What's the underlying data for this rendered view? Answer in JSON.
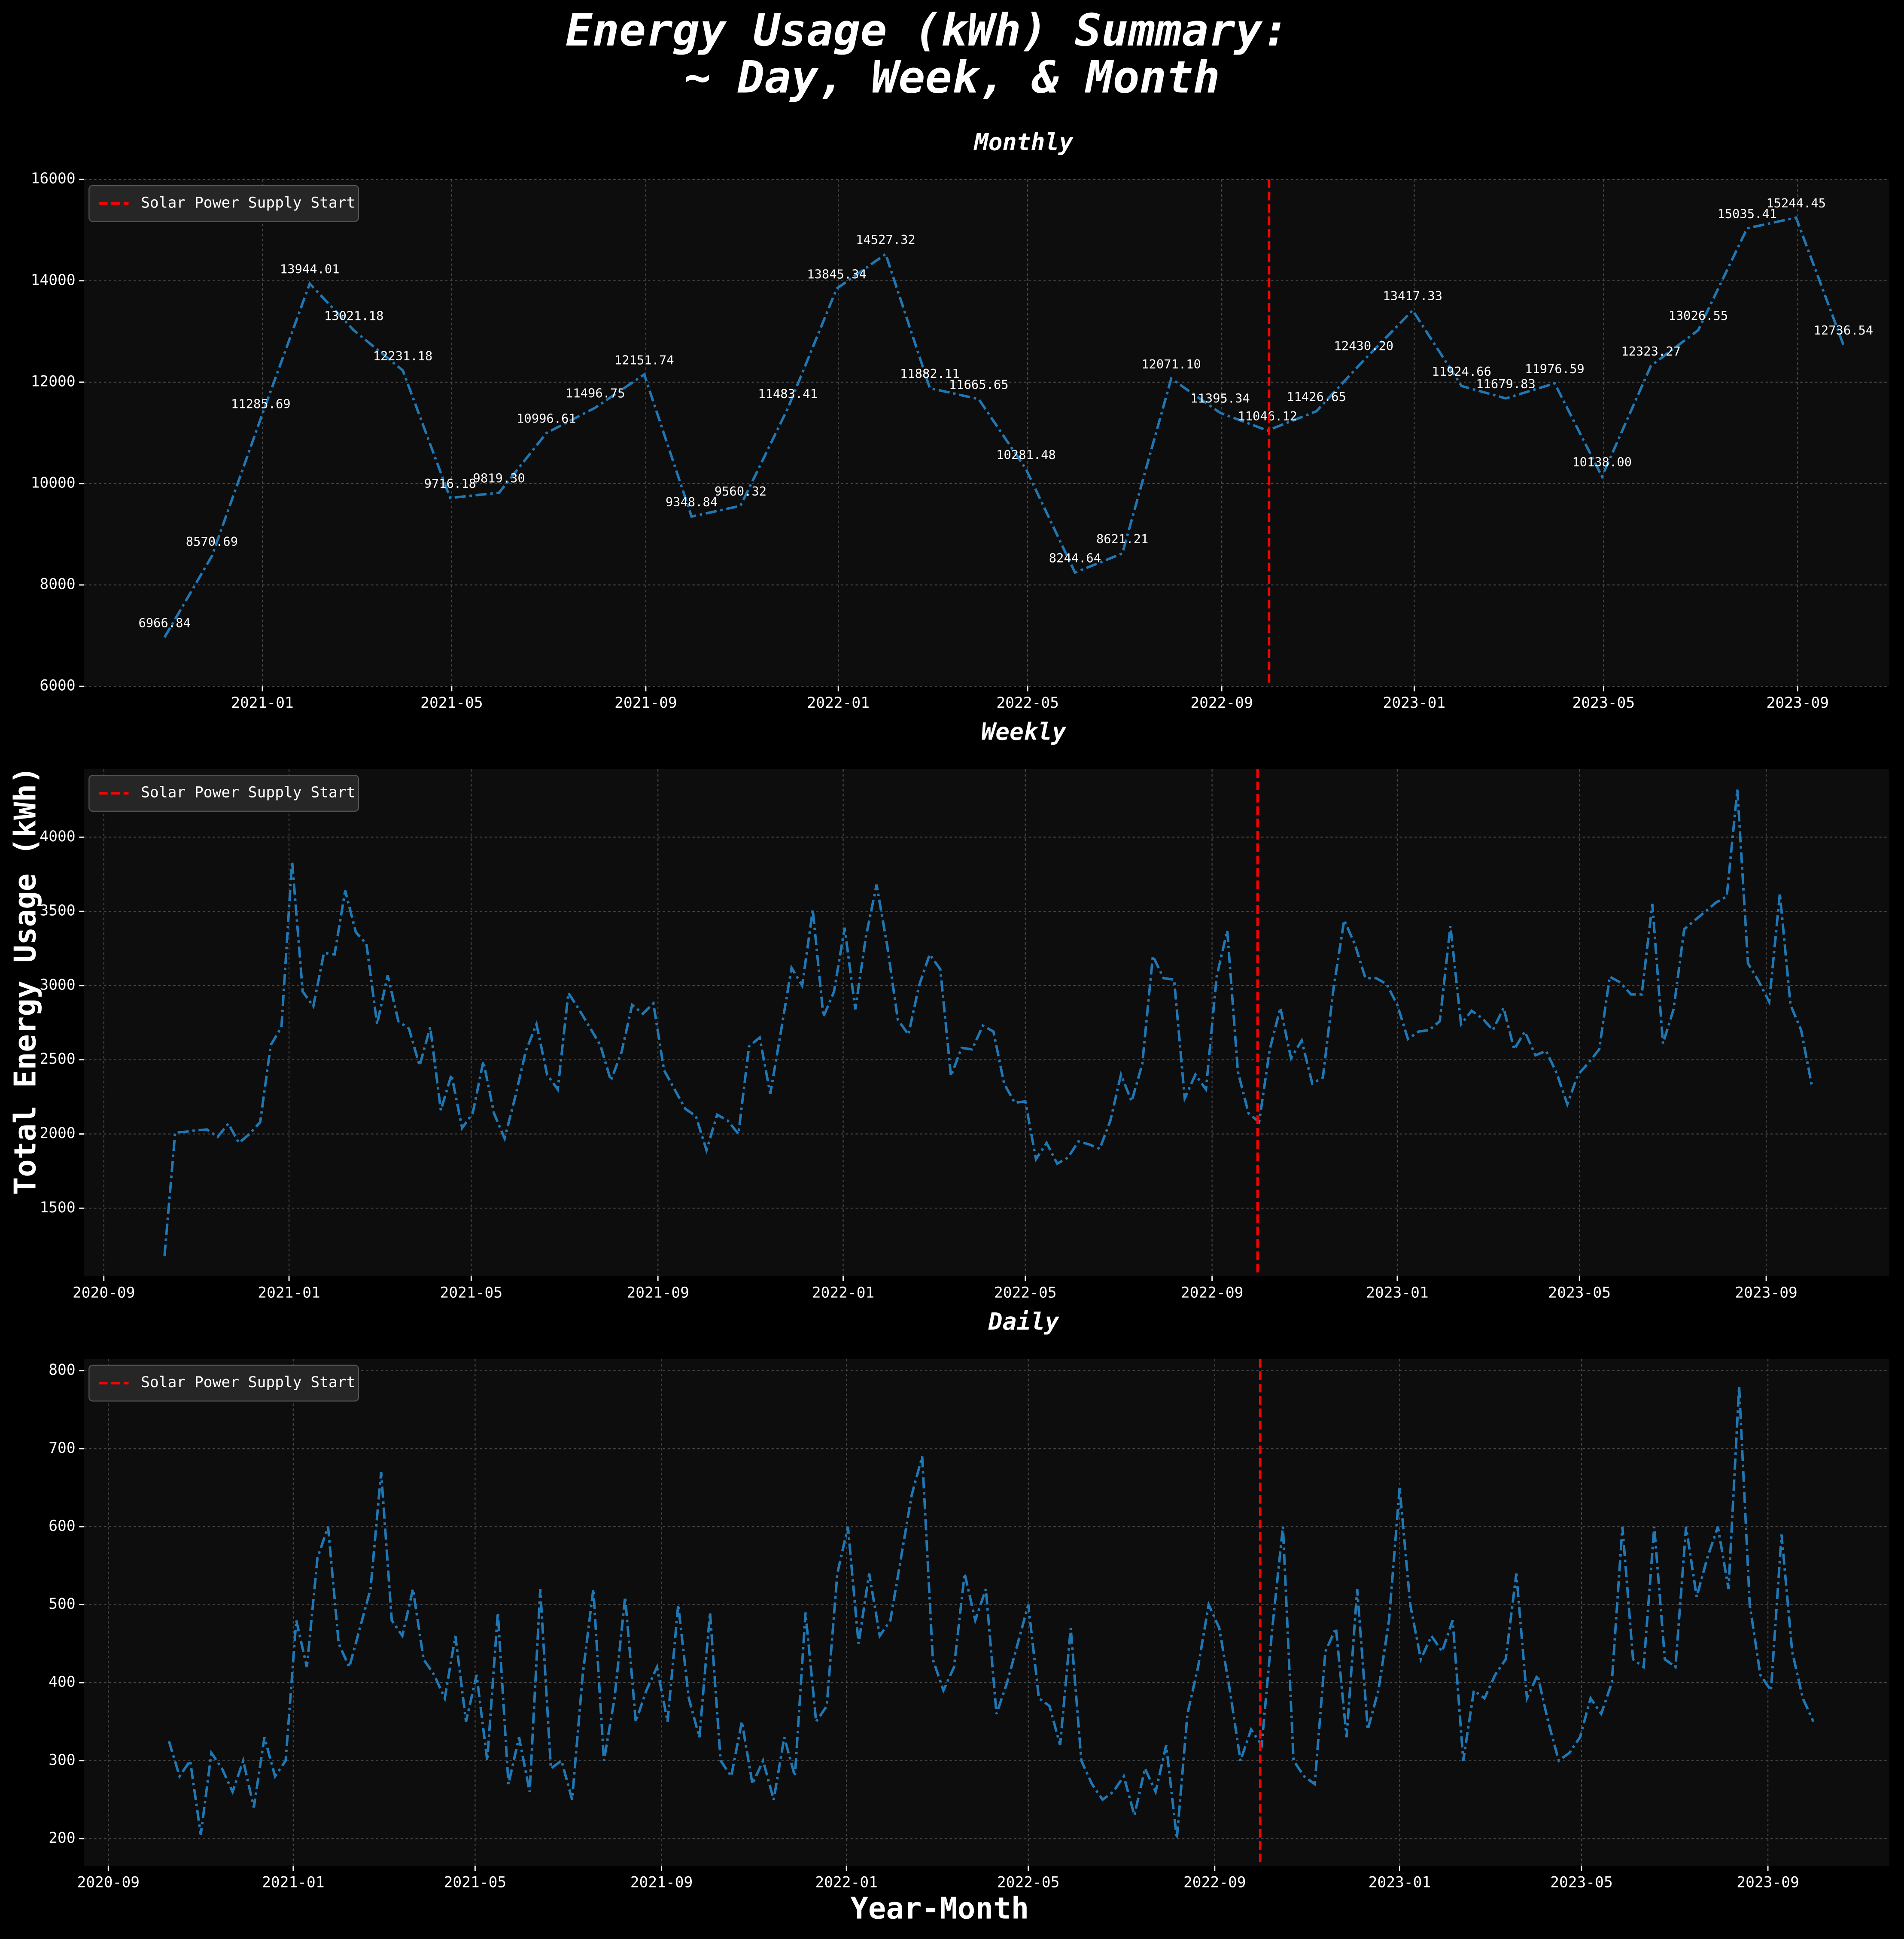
{
  "figure": {
    "title": [
      "Energy Usage (kWh) Summary:",
      "~ Day, Week, & Month"
    ],
    "ylabel": "Total Energy Usage (kWh)",
    "xlabel": "Year-Month"
  },
  "chart_data": [
    {
      "type": "line",
      "title": "Monthly",
      "color": "#1f77b4",
      "grid": true,
      "legend": "upper left",
      "vline": {
        "x": "2022-10-01",
        "label": "Solar Power Supply Start",
        "color": "red"
      },
      "xlim": [
        "2020-09-10",
        "2023-10-29"
      ],
      "xticks": [
        "2021-01",
        "2021-05",
        "2021-09",
        "2022-01",
        "2022-05",
        "2022-09",
        "2023-01",
        "2023-05",
        "2023-09"
      ],
      "ylim": [
        6000,
        16000
      ],
      "yticks": [
        6000,
        8000,
        10000,
        12000,
        14000,
        16000
      ],
      "x": [
        "2020-10-31",
        "2020-11-30",
        "2020-12-31",
        "2021-01-31",
        "2021-02-28",
        "2021-03-31",
        "2021-04-30",
        "2021-05-31",
        "2021-06-30",
        "2021-07-31",
        "2021-08-31",
        "2021-09-30",
        "2021-10-31",
        "2021-11-30",
        "2021-12-31",
        "2022-01-31",
        "2022-02-28",
        "2022-03-31",
        "2022-04-30",
        "2022-05-31",
        "2022-06-30",
        "2022-07-31",
        "2022-08-31",
        "2022-09-30",
        "2022-10-31",
        "2022-11-30",
        "2022-12-31",
        "2023-01-31",
        "2023-02-28",
        "2023-03-31",
        "2023-04-30",
        "2023-05-31",
        "2023-06-30",
        "2023-07-31",
        "2023-08-31",
        "2023-09-30"
      ],
      "values": [
        6966.84,
        8570.69,
        11285.69,
        13944.01,
        13021.18,
        12231.18,
        9716.18,
        9819.3,
        10996.61,
        11496.75,
        12151.74,
        9348.84,
        9560.32,
        11483.41,
        13845.34,
        14527.32,
        11882.11,
        11665.65,
        10281.48,
        8244.64,
        8621.21,
        12071.1,
        11395.34,
        11046.12,
        11426.65,
        12430.2,
        13417.33,
        11924.66,
        11679.83,
        11976.59,
        10138.0,
        12323.27,
        13026.55,
        15035.41,
        15244.45,
        12736.54
      ],
      "value_labels": [
        "6966.84",
        "8570.69",
        "11285.69",
        "13944.01",
        "13021.18",
        "12231.18",
        "9716.18",
        "9819.30",
        "10996.61",
        "11496.75",
        "12151.74",
        "9348.84",
        "9560.32",
        "11483.41",
        "13845.34",
        "14527.32",
        "11882.11",
        "11665.65",
        "10281.48",
        "8244.64",
        "8621.21",
        "12071.10",
        "11395.34",
        "11046.12",
        "11426.65",
        "12430.20",
        "13417.33",
        "11924.66",
        "11679.83",
        "11976.59",
        "10138.00",
        "12323.27",
        "13026.55",
        "15035.41",
        "15244.45",
        "12736.54"
      ]
    },
    {
      "type": "line",
      "title": "Weekly",
      "color": "#1f77b4",
      "grid": true,
      "legend": "upper left",
      "vline": {
        "x": "2022-10-01",
        "label": "Solar Power Supply Start",
        "color": "red"
      },
      "xlim": [
        "2020-08-19",
        "2023-11-21"
      ],
      "xticks": [
        "2020-09",
        "2021-01",
        "2021-05",
        "2021-09",
        "2022-01",
        "2022-05",
        "2022-09",
        "2023-01",
        "2023-05",
        "2023-09"
      ],
      "ylim": [
        1042,
        4458
      ],
      "yticks": [
        1500,
        2000,
        2500,
        3000,
        3500,
        4000
      ],
      "x": [
        "2020-10-11",
        "2020-10-18",
        "2020-10-25",
        "2020-11-01",
        "2020-11-08",
        "2020-11-15",
        "2020-11-22",
        "2020-11-29",
        "2020-12-06",
        "2020-12-13",
        "2020-12-20",
        "2020-12-27",
        "2021-01-03",
        "2021-01-10",
        "2021-01-17",
        "2021-01-24",
        "2021-01-31",
        "2021-02-07",
        "2021-02-14",
        "2021-02-21",
        "2021-02-28",
        "2021-03-07",
        "2021-03-14",
        "2021-03-21",
        "2021-03-28",
        "2021-04-04",
        "2021-04-11",
        "2021-04-18",
        "2021-04-25",
        "2021-05-02",
        "2021-05-09",
        "2021-05-16",
        "2021-05-23",
        "2021-05-30",
        "2021-06-06",
        "2021-06-13",
        "2021-06-20",
        "2021-06-27",
        "2021-07-04",
        "2021-07-11",
        "2021-07-18",
        "2021-07-25",
        "2021-08-01",
        "2021-08-08",
        "2021-08-15",
        "2021-08-22",
        "2021-08-29",
        "2021-09-05",
        "2021-09-12",
        "2021-09-19",
        "2021-09-26",
        "2021-10-03",
        "2021-10-10",
        "2021-10-17",
        "2021-10-24",
        "2021-10-31",
        "2021-11-07",
        "2021-11-14",
        "2021-11-21",
        "2021-11-28",
        "2021-12-05",
        "2021-12-12",
        "2021-12-19",
        "2021-12-26",
        "2022-01-02",
        "2022-01-09",
        "2022-01-16",
        "2022-01-23",
        "2022-01-30",
        "2022-02-06",
        "2022-02-13",
        "2022-02-20",
        "2022-02-27",
        "2022-03-06",
        "2022-03-13",
        "2022-03-20",
        "2022-03-27",
        "2022-04-03",
        "2022-04-10",
        "2022-04-17",
        "2022-04-24",
        "2022-05-01",
        "2022-05-08",
        "2022-05-15",
        "2022-05-22",
        "2022-05-29",
        "2022-06-05",
        "2022-06-12",
        "2022-06-19",
        "2022-06-26",
        "2022-07-03",
        "2022-07-10",
        "2022-07-17",
        "2022-07-24",
        "2022-07-31",
        "2022-08-07",
        "2022-08-14",
        "2022-08-21",
        "2022-08-28",
        "2022-09-04",
        "2022-09-11",
        "2022-09-18",
        "2022-09-25",
        "2022-10-02",
        "2022-10-09",
        "2022-10-16",
        "2022-10-23",
        "2022-10-30",
        "2022-11-06",
        "2022-11-13",
        "2022-11-20",
        "2022-11-27",
        "2022-12-04",
        "2022-12-11",
        "2022-12-18",
        "2022-12-25",
        "2023-01-01",
        "2023-01-08",
        "2023-01-15",
        "2023-01-22",
        "2023-01-29",
        "2023-02-05",
        "2023-02-12",
        "2023-02-19",
        "2023-02-26",
        "2023-03-05",
        "2023-03-12",
        "2023-03-19",
        "2023-03-26",
        "2023-04-02",
        "2023-04-09",
        "2023-04-16",
        "2023-04-23",
        "2023-04-30",
        "2023-05-07",
        "2023-05-14",
        "2023-05-21",
        "2023-05-28",
        "2023-06-04",
        "2023-06-11",
        "2023-06-18",
        "2023-06-25",
        "2023-07-02",
        "2023-07-09",
        "2023-07-16",
        "2023-07-23",
        "2023-07-30",
        "2023-08-06",
        "2023-08-13",
        "2023-08-20",
        "2023-08-27",
        "2023-09-03",
        "2023-09-10",
        "2023-09-17",
        "2023-09-24",
        "2023-10-01"
      ],
      "values": [
        1180,
        2010,
        2015,
        2025,
        2030,
        1980,
        2070,
        1940,
        2000,
        2080,
        2600,
        2720,
        3840,
        2960,
        2860,
        3220,
        3210,
        3640,
        3360,
        3280,
        2740,
        3070,
        2760,
        2710,
        2460,
        2720,
        2160,
        2400,
        2040,
        2140,
        2490,
        2140,
        1970,
        2250,
        2560,
        2740,
        2400,
        2300,
        2950,
        2840,
        2720,
        2600,
        2360,
        2550,
        2870,
        2810,
        2880,
        2430,
        2300,
        2170,
        2120,
        1890,
        2130,
        2090,
        2000,
        2590,
        2650,
        2270,
        2690,
        3120,
        3000,
        3510,
        2790,
        2960,
        3390,
        2840,
        3330,
        3680,
        3270,
        2770,
        2670,
        3000,
        3210,
        3110,
        2390,
        2580,
        2570,
        2730,
        2690,
        2340,
        2210,
        2220,
        1830,
        1940,
        1800,
        1840,
        1950,
        1930,
        1900,
        2090,
        2400,
        2220,
        2470,
        3200,
        3050,
        3040,
        2240,
        2400,
        2300,
        3060,
        3370,
        2420,
        2140,
        2080,
        2570,
        2850,
        2510,
        2630,
        2340,
        2380,
        2980,
        3440,
        3280,
        3050,
        3050,
        3010,
        2870,
        2640,
        2690,
        2700,
        2760,
        3400,
        2740,
        2830,
        2780,
        2700,
        2850,
        2570,
        2690,
        2530,
        2560,
        2410,
        2200,
        2400,
        2480,
        2570,
        3060,
        3020,
        2940,
        2940,
        3550,
        2610,
        2840,
        3380,
        3440,
        3500,
        3560,
        3600,
        4320,
        3150,
        3030,
        2890,
        3620,
        2870,
        2700,
        2330
      ]
    },
    {
      "type": "line",
      "title": "Daily",
      "color": "#1f77b4",
      "grid": true,
      "legend": "upper left",
      "vline": {
        "x": "2022-10-01",
        "label": "Solar Power Supply Start",
        "color": "red"
      },
      "xlim": [
        "2020-08-16",
        "2023-11-20"
      ],
      "xticks": [
        "2020-09",
        "2021-01",
        "2021-05",
        "2021-09",
        "2022-01",
        "2022-05",
        "2022-09",
        "2023-01",
        "2023-05",
        "2023-09"
      ],
      "ylim": [
        165,
        815
      ],
      "yticks": [
        200,
        300,
        400,
        500,
        600,
        700,
        800
      ],
      "x": [
        "2020-10-11",
        "2020-10-18",
        "2020-10-25",
        "2020-11-01",
        "2020-11-08",
        "2020-11-15",
        "2020-11-22",
        "2020-11-29",
        "2020-12-06",
        "2020-12-13",
        "2020-12-20",
        "2020-12-27",
        "2021-01-03",
        "2021-01-10",
        "2021-01-17",
        "2021-01-24",
        "2021-01-31",
        "2021-02-07",
        "2021-02-14",
        "2021-02-21",
        "2021-02-28",
        "2021-03-07",
        "2021-03-14",
        "2021-03-21",
        "2021-03-28",
        "2021-04-04",
        "2021-04-11",
        "2021-04-18",
        "2021-04-25",
        "2021-05-02",
        "2021-05-09",
        "2021-05-16",
        "2021-05-23",
        "2021-05-30",
        "2021-06-06",
        "2021-06-13",
        "2021-06-20",
        "2021-06-27",
        "2021-07-04",
        "2021-07-11",
        "2021-07-18",
        "2021-07-25",
        "2021-08-01",
        "2021-08-08",
        "2021-08-15",
        "2021-08-22",
        "2021-08-29",
        "2021-09-05",
        "2021-09-12",
        "2021-09-19",
        "2021-09-26",
        "2021-10-03",
        "2021-10-10",
        "2021-10-17",
        "2021-10-24",
        "2021-10-31",
        "2021-11-07",
        "2021-11-14",
        "2021-11-21",
        "2021-11-28",
        "2021-12-05",
        "2021-12-12",
        "2021-12-19",
        "2021-12-26",
        "2022-01-02",
        "2022-01-09",
        "2022-01-16",
        "2022-01-23",
        "2022-01-30",
        "2022-02-06",
        "2022-02-13",
        "2022-02-20",
        "2022-02-27",
        "2022-03-06",
        "2022-03-13",
        "2022-03-20",
        "2022-03-27",
        "2022-04-03",
        "2022-04-10",
        "2022-04-17",
        "2022-04-24",
        "2022-05-01",
        "2022-05-08",
        "2022-05-15",
        "2022-05-22",
        "2022-05-29",
        "2022-06-05",
        "2022-06-12",
        "2022-06-19",
        "2022-06-26",
        "2022-07-03",
        "2022-07-10",
        "2022-07-17",
        "2022-07-24",
        "2022-07-31",
        "2022-08-07",
        "2022-08-14",
        "2022-08-21",
        "2022-08-28",
        "2022-09-04",
        "2022-09-11",
        "2022-09-18",
        "2022-09-25",
        "2022-10-02",
        "2022-10-09",
        "2022-10-16",
        "2022-10-23",
        "2022-10-30",
        "2022-11-06",
        "2022-11-13",
        "2022-11-20",
        "2022-11-27",
        "2022-12-04",
        "2022-12-11",
        "2022-12-18",
        "2022-12-25",
        "2023-01-01",
        "2023-01-08",
        "2023-01-15",
        "2023-01-22",
        "2023-01-29",
        "2023-02-05",
        "2023-02-12",
        "2023-02-19",
        "2023-02-26",
        "2023-03-05",
        "2023-03-12",
        "2023-03-19",
        "2023-03-26",
        "2023-04-02",
        "2023-04-09",
        "2023-04-16",
        "2023-04-23",
        "2023-04-30",
        "2023-05-07",
        "2023-05-14",
        "2023-05-21",
        "2023-05-28",
        "2023-06-04",
        "2023-06-11",
        "2023-06-18",
        "2023-06-25",
        "2023-07-02",
        "2023-07-09",
        "2023-07-16",
        "2023-07-23",
        "2023-07-30",
        "2023-08-06",
        "2023-08-13",
        "2023-08-20",
        "2023-08-27",
        "2023-09-03",
        "2023-09-10",
        "2023-09-17",
        "2023-09-24",
        "2023-10-01"
      ],
      "values": [
        325,
        280,
        300,
        205,
        310,
        290,
        260,
        300,
        240,
        330,
        280,
        300,
        480,
        420,
        560,
        600,
        450,
        420,
        470,
        520,
        670,
        480,
        460,
        520,
        430,
        410,
        380,
        460,
        350,
        410,
        300,
        490,
        270,
        330,
        260,
        520,
        290,
        300,
        250,
        410,
        520,
        300,
        380,
        510,
        350,
        390,
        420,
        350,
        500,
        380,
        330,
        490,
        300,
        280,
        350,
        270,
        300,
        250,
        330,
        280,
        490,
        350,
        370,
        540,
        600,
        450,
        540,
        460,
        480,
        560,
        640,
        690,
        430,
        390,
        420,
        540,
        480,
        520,
        360,
        400,
        450,
        500,
        380,
        370,
        320,
        470,
        300,
        270,
        250,
        260,
        280,
        230,
        290,
        260,
        320,
        200,
        360,
        420,
        500,
        470,
        390,
        300,
        340,
        320,
        470,
        600,
        300,
        280,
        270,
        440,
        470,
        330,
        520,
        340,
        390,
        480,
        650,
        500,
        430,
        460,
        440,
        480,
        300,
        390,
        380,
        410,
        430,
        540,
        380,
        410,
        350,
        300,
        310,
        330,
        380,
        360,
        400,
        600,
        430,
        420,
        600,
        430,
        420,
        600,
        510,
        560,
        600,
        520,
        780,
        500,
        410,
        390,
        590,
        440,
        380,
        350
      ]
    }
  ]
}
